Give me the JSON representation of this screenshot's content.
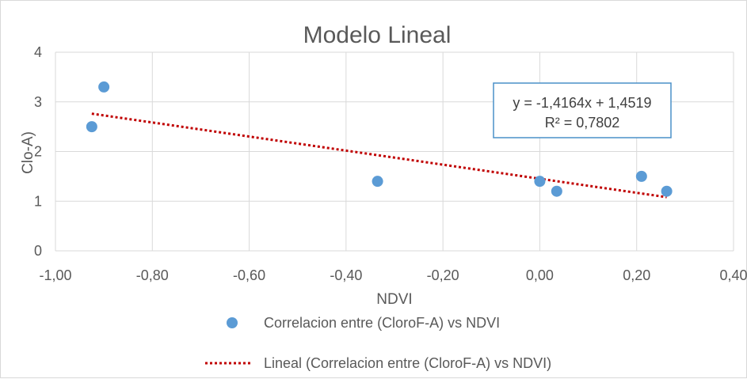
{
  "chart_data": {
    "type": "scatter",
    "title": "Modelo Lineal",
    "xlabel": "NDVI",
    "ylabel": "Clo-A)",
    "xlim": [
      -1.0,
      0.4
    ],
    "ylim": [
      0,
      4
    ],
    "x_ticks": [
      "-1,00",
      "-0,80",
      "-0,60",
      "-0,40",
      "-0,20",
      "0,00",
      "0,20",
      "0,40"
    ],
    "y_ticks": [
      "0",
      "1",
      "2",
      "3",
      "4"
    ],
    "grid": true,
    "series": [
      {
        "name": "Correlacion entre (CloroF-A) vs NDVI",
        "color": "#5b9bd5",
        "points": [
          {
            "x": -0.925,
            "y": 2.5
          },
          {
            "x": -0.9,
            "y": 3.3
          },
          {
            "x": -0.335,
            "y": 1.4
          },
          {
            "x": 0.0,
            "y": 1.4
          },
          {
            "x": 0.035,
            "y": 1.2
          },
          {
            "x": 0.21,
            "y": 1.5
          },
          {
            "x": 0.262,
            "y": 1.2
          }
        ]
      }
    ],
    "trendline": {
      "name": "Lineal (Correlacion entre (CloroF-A) vs NDVI)",
      "color": "#c00000",
      "slope": -1.4164,
      "intercept": 1.4519,
      "x_range": [
        -0.925,
        0.262
      ]
    },
    "equation": {
      "line1": "y = -1,4164x + 1,4519",
      "line2": "R² = 0,7802"
    },
    "legend_position": "bottom"
  }
}
